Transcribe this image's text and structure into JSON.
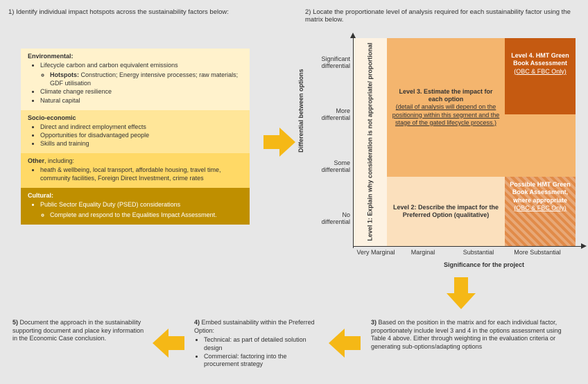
{
  "step1_title": "1)  Identify individual impact hotspots across the sustainability factors below:",
  "step2_title": "2) Locate the proportionate level of analysis required for each sustainability factor using the matrix below.",
  "factors": {
    "environmental": {
      "bg": "#fff2cc",
      "title": "Environmental:",
      "items": [
        "Lifecycle carbon and carbon equivalent emissions",
        "—hotspots—",
        "Climate change resilience",
        "Natural capital"
      ],
      "hotspots_label": "Hotspots:",
      "hotspots_text": " Construction; Energy intensive processes; raw materials; GDF utilisation"
    },
    "socio": {
      "bg": "#ffe699",
      "title": "Socio-economic",
      "items": [
        "Direct and indirect employment effects",
        "Opportunities for disadvantaged people",
        "Skills and training"
      ]
    },
    "other": {
      "bg": "#ffd966",
      "title": "Other",
      "title_suffix": ", including:",
      "items": [
        "heath & wellbeing,  local transport, affordable housing, travel time, community facilities, Foreign Direct Investment, crime rates"
      ]
    },
    "cultural": {
      "bg": "#bf8f00",
      "title": "Cultural:",
      "items": [
        "Public Sector Equality Duty (PSED) considerations"
      ],
      "subitem": "Complete and respond to the Equalities Impact Assessment."
    }
  },
  "arrow_color": "#f5b816",
  "matrix": {
    "y_title": "Differential between options",
    "x_title": "Significance for the project",
    "y_ticks": [
      "Significant differential",
      "More differential",
      "Some differential",
      "No differential"
    ],
    "x_ticks": [
      "Very Marginal",
      "Marginal",
      "Substantial",
      "More Substantial"
    ],
    "cells": {
      "level1": {
        "bg": "#fdf2e2",
        "text": "Level 1: Explain why consideration is not appropriate/ proportional"
      },
      "level2": {
        "bg": "#fbe0bd",
        "title": "Level 2: Describe the impact for the Preferred Option (qualitative)"
      },
      "level3": {
        "bg": "#f4b56e",
        "title": "Level 3. Estimate the impact for each option",
        "sub": "(detail of analysis will depend on the positioning within this segment and the stage of the gated lifecycle process.)"
      },
      "level4": {
        "bg": "#c55a11",
        "text_color": "#ffffff",
        "title": "Level 4. HMT Green Book Assessment",
        "sub": "(OBC & FBC Only)"
      },
      "possible": {
        "bg": "#e18b49",
        "text_color": "#ffffff",
        "title": "Possible HMT Green Book Assessment, where appropriate",
        "sub": "(OBC & FBC Only)"
      }
    }
  },
  "step3": {
    "text": "3) Based on the position in the matrix and for each individual factor, proportionately include level 3 and 4 in the options assessment using Table 4 above. Either through weighting in the evaluation criteria or generating sub-options/adapting options"
  },
  "step4": {
    "lead": "4) Embed sustainability within the Preferred Option:",
    "items": [
      "Technical: as part of detailed solution design",
      "Commercial: factoring into the procurement strategy"
    ]
  },
  "step5": {
    "text": "5) Document the approach in the sustainability supporting document and place key information in the Economic Case conclusion."
  },
  "font_sizes": {
    "body": 9,
    "titles": 9.5
  }
}
